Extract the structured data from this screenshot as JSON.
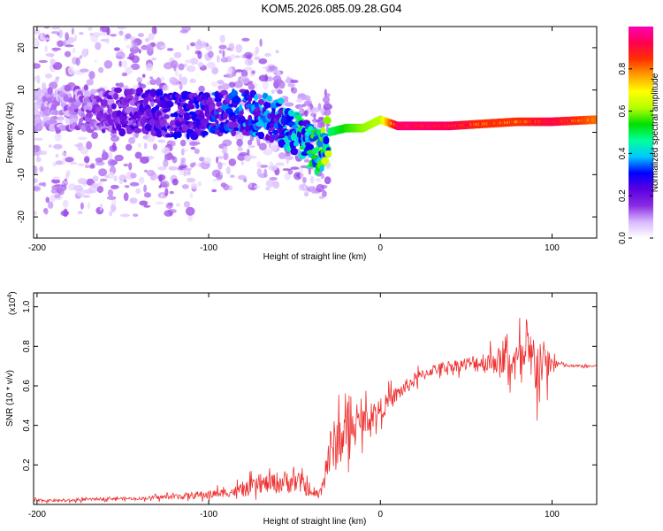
{
  "title": "KOM5.2026.085.09.28.G04",
  "chart_data": [
    {
      "type": "heatmap",
      "xlabel": "Height of straight line (km)",
      "ylabel": "Frequency (Hz)",
      "xlim": [
        -202,
        126
      ],
      "ylim": [
        -25,
        25
      ],
      "xticks": [
        -200,
        -100,
        0,
        100
      ],
      "yticks": [
        -20,
        -10,
        0,
        10,
        20
      ],
      "colorbar": {
        "label": "Normalized spectral amplitude",
        "range": [
          0,
          1
        ],
        "ticks": [
          "0.0",
          "0.2",
          "0.4",
          "0.6",
          "0.8"
        ],
        "colormap": [
          "#ffffff",
          "#d8b8ff",
          "#8a2be2",
          "#5a00e0",
          "#0000ff",
          "#00c8ff",
          "#00ff9a",
          "#00e000",
          "#b4ff00",
          "#ffff00",
          "#ffa000",
          "#ff3000",
          "#ff0050",
          "#ff00b4"
        ]
      },
      "ridge": {
        "x": [
          -200,
          -180,
          -160,
          -140,
          -120,
          -100,
          -80,
          -60,
          -50,
          -40,
          -35,
          -30,
          -20,
          -10,
          0,
          10,
          20,
          40,
          60,
          80,
          100,
          126
        ],
        "freq": [
          5,
          6,
          5,
          5,
          4,
          4,
          5,
          3,
          0,
          -4,
          -5,
          0,
          1,
          1,
          3,
          1.5,
          1.5,
          1.5,
          2,
          2.5,
          2.5,
          3
        ],
        "amplitude": [
          0.08,
          0.1,
          0.15,
          0.2,
          0.22,
          0.25,
          0.28,
          0.3,
          0.35,
          0.4,
          0.45,
          0.48,
          0.55,
          0.6,
          0.62,
          0.95,
          0.95,
          0.93,
          0.85,
          0.85,
          0.92,
          0.8
        ]
      }
    },
    {
      "type": "line",
      "xlabel": "Height of straight line (km)",
      "ylabel": "SNR (10 * v/v)",
      "y_scale_label": "(x10",
      "y_scale_exp": "4",
      "y_scale_close": ")",
      "xlim": [
        -202,
        126
      ],
      "ylim": [
        0,
        1.07
      ],
      "xticks": [
        -200,
        -100,
        0,
        100
      ],
      "yticks": [
        0.2,
        0.4,
        0.6,
        0.8,
        1.0
      ],
      "color": "#ee3030",
      "series": [
        {
          "name": "SNR",
          "x": [
            -202,
            -180,
            -160,
            -140,
            -120,
            -100,
            -90,
            -80,
            -70,
            -60,
            -50,
            -45,
            -40,
            -35,
            -30,
            -25,
            -20,
            -15,
            -10,
            -5,
            0,
            10,
            20,
            30,
            40,
            50,
            60,
            70,
            80,
            90,
            100,
            105,
            110,
            126
          ],
          "y": [
            0.02,
            0.02,
            0.03,
            0.03,
            0.04,
            0.05,
            0.06,
            0.07,
            0.1,
            0.11,
            0.12,
            0.1,
            0.05,
            0.06,
            0.25,
            0.32,
            0.36,
            0.4,
            0.42,
            0.45,
            0.48,
            0.56,
            0.63,
            0.68,
            0.7,
            0.71,
            0.72,
            0.73,
            0.72,
            0.72,
            0.71,
            0.71,
            0.7,
            0.7
          ],
          "noise_amplitude": [
            0.01,
            0.01,
            0.01,
            0.01,
            0.02,
            0.03,
            0.03,
            0.05,
            0.06,
            0.08,
            0.09,
            0.07,
            0.02,
            0.04,
            0.18,
            0.2,
            0.18,
            0.1,
            0.1,
            0.1,
            0.08,
            0.06,
            0.05,
            0.04,
            0.04,
            0.05,
            0.08,
            0.1,
            0.15,
            0.25,
            0.08,
            0.02,
            0.01,
            0.01
          ]
        }
      ]
    }
  ]
}
